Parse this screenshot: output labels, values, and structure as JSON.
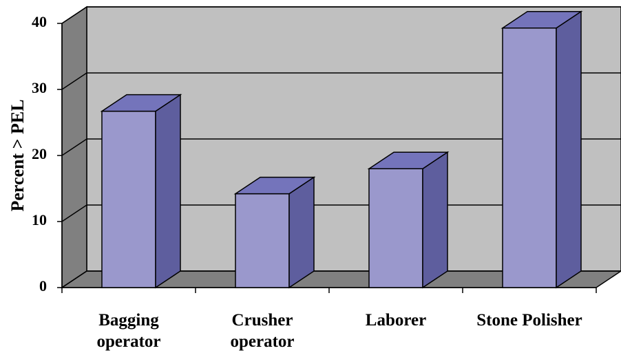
{
  "chart_data": {
    "type": "bar3d",
    "y_label": "Percent > PEL",
    "categories": [
      "Bagging\noperator",
      "Crusher\noperator",
      "Laborer",
      "Stone Polisher"
    ],
    "values": [
      26.7,
      14.2,
      18,
      39.3
    ],
    "color": "#9a98cc",
    "side_color": "#5e5e9e",
    "top_color": "#7474bb",
    "ylim": [
      0,
      40
    ],
    "yticks": [
      0,
      10,
      20,
      30,
      40
    ],
    "grid": true
  }
}
